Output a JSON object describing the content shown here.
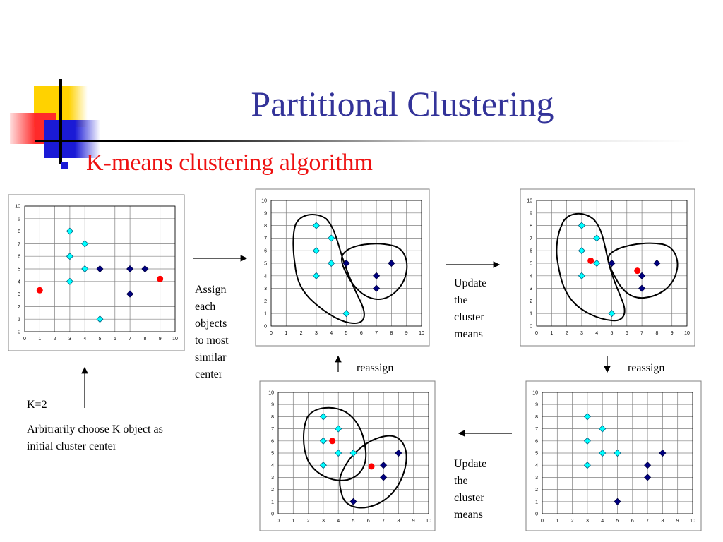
{
  "slide": {
    "title": "Partitional Clustering",
    "subtitle": "K-means clustering algorithm",
    "assign_text": [
      "Assign",
      "each",
      "objects",
      "to most",
      "similar",
      "center"
    ],
    "update_text_1": [
      "Update",
      "the",
      "cluster",
      "means"
    ],
    "update_text_2": [
      "Update",
      "the",
      "cluster",
      "means"
    ],
    "reassign_1": "reassign",
    "reassign_2": "reassign",
    "k_label": "K=2",
    "arbitrary_text": "Arbitrarily choose K object as initial cluster center",
    "colors": {
      "title": "#333399",
      "subtitle": "#ee1111",
      "light_point": "#00ffff",
      "dark_point": "#000080",
      "center": "#ff0000"
    }
  },
  "chart_data": [
    {
      "type": "scatter",
      "xlim": [
        0,
        10
      ],
      "ylim": [
        0,
        10
      ],
      "grid": true,
      "x_ticks": [
        0,
        1,
        2,
        3,
        4,
        5,
        6,
        7,
        8,
        9,
        10
      ],
      "y_ticks": [
        0,
        1,
        2,
        3,
        4,
        5,
        6,
        7,
        8,
        9,
        10
      ],
      "light_points": [
        [
          3,
          8
        ],
        [
          3,
          6
        ],
        [
          3,
          4
        ],
        [
          4,
          7
        ],
        [
          4,
          5
        ],
        [
          5,
          1
        ]
      ],
      "dark_points": [
        [
          5,
          5
        ],
        [
          7,
          5
        ],
        [
          8,
          5
        ],
        [
          7,
          3
        ]
      ],
      "centers": [
        [
          1,
          3.3
        ],
        [
          9,
          4.2
        ]
      ],
      "cluster_outlines": false
    },
    {
      "type": "scatter",
      "xlim": [
        0,
        10
      ],
      "ylim": [
        0,
        10
      ],
      "grid": true,
      "x_ticks": [
        0,
        1,
        2,
        3,
        4,
        5,
        6,
        7,
        8,
        9,
        10
      ],
      "y_ticks": [
        0,
        1,
        2,
        3,
        4,
        5,
        6,
        7,
        8,
        9,
        10
      ],
      "light_points": [
        [
          3,
          8
        ],
        [
          3,
          6
        ],
        [
          3,
          4
        ],
        [
          4,
          7
        ],
        [
          4,
          5
        ],
        [
          5,
          1
        ]
      ],
      "dark_points": [
        [
          5,
          5
        ],
        [
          7,
          4
        ],
        [
          8,
          5
        ],
        [
          7,
          3
        ]
      ],
      "centers": [],
      "cluster_outlines": true
    },
    {
      "type": "scatter",
      "xlim": [
        0,
        10
      ],
      "ylim": [
        0,
        10
      ],
      "grid": true,
      "x_ticks": [
        0,
        1,
        2,
        3,
        4,
        5,
        6,
        7,
        8,
        9,
        10
      ],
      "y_ticks": [
        0,
        1,
        2,
        3,
        4,
        5,
        6,
        7,
        8,
        9,
        10
      ],
      "light_points": [
        [
          3,
          8
        ],
        [
          3,
          6
        ],
        [
          3,
          4
        ],
        [
          4,
          7
        ],
        [
          4,
          5
        ],
        [
          5,
          1
        ]
      ],
      "dark_points": [
        [
          5,
          5
        ],
        [
          7,
          4
        ],
        [
          8,
          5
        ],
        [
          7,
          3
        ]
      ],
      "centers": [
        [
          3.6,
          5.2
        ],
        [
          6.7,
          4.4
        ]
      ],
      "cluster_outlines": true
    },
    {
      "type": "scatter",
      "xlim": [
        0,
        10
      ],
      "ylim": [
        0,
        10
      ],
      "grid": true,
      "x_ticks": [
        0,
        1,
        2,
        3,
        4,
        5,
        6,
        7,
        8,
        9,
        10
      ],
      "y_ticks": [
        0,
        1,
        2,
        3,
        4,
        5,
        6,
        7,
        8,
        9,
        10
      ],
      "light_points": [
        [
          3,
          8
        ],
        [
          3,
          6
        ],
        [
          3,
          4
        ],
        [
          4,
          7
        ],
        [
          4,
          5
        ],
        [
          5,
          5
        ]
      ],
      "dark_points": [
        [
          5,
          1
        ],
        [
          7,
          4
        ],
        [
          8,
          5
        ],
        [
          7,
          3
        ]
      ],
      "centers": [],
      "cluster_outlines": false
    },
    {
      "type": "scatter",
      "xlim": [
        0,
        10
      ],
      "ylim": [
        0,
        10
      ],
      "grid": true,
      "x_ticks": [
        0,
        1,
        2,
        3,
        4,
        5,
        6,
        7,
        8,
        9,
        10
      ],
      "y_ticks": [
        0,
        1,
        2,
        3,
        4,
        5,
        6,
        7,
        8,
        9,
        10
      ],
      "light_points": [
        [
          3,
          8
        ],
        [
          3,
          6
        ],
        [
          3,
          4
        ],
        [
          4,
          7
        ],
        [
          4,
          5
        ],
        [
          5,
          5
        ]
      ],
      "dark_points": [
        [
          5,
          1
        ],
        [
          7,
          4
        ],
        [
          8,
          5
        ],
        [
          7,
          3
        ]
      ],
      "centers": [
        [
          3.6,
          6
        ],
        [
          6.2,
          3.9
        ]
      ],
      "cluster_outlines": true
    }
  ]
}
